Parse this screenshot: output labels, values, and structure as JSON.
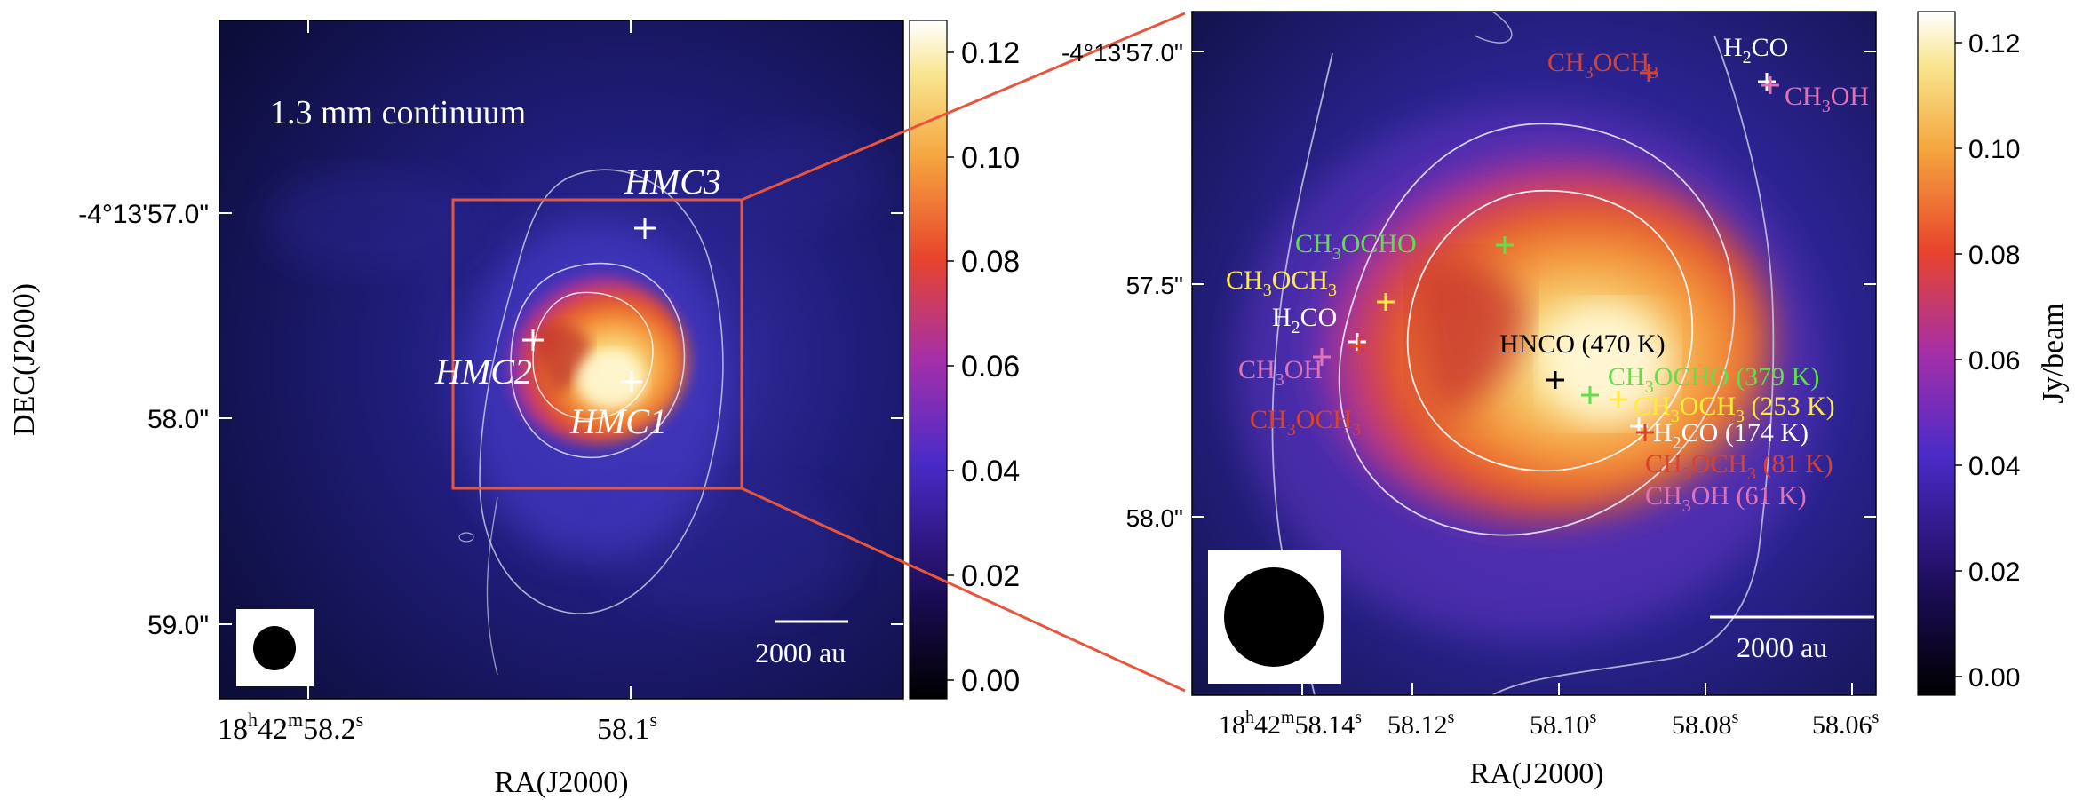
{
  "left_panel": {
    "title": "1.3 mm continuum",
    "ylabel": "DEC(J2000)",
    "xlabel": "RA(J2000)",
    "yticks": [
      "-4°13'57.0\"",
      "58.0\"",
      "59.0\""
    ],
    "xticks": [
      {
        "h": "18",
        "m": "42",
        "s": "58.2"
      },
      {
        "s": "58.1"
      }
    ],
    "colorbar": {
      "ticks": [
        "0.12",
        "0.10",
        "0.08",
        "0.06",
        "0.04",
        "0.02",
        "0.00"
      ]
    },
    "sources": [
      {
        "label": "HMC3",
        "pos": "north"
      },
      {
        "label": "HMC2",
        "pos": "west"
      },
      {
        "label": "HMC1",
        "pos": "south-east"
      }
    ],
    "scale_bar": "2000 au"
  },
  "right_panel": {
    "xlabel": "RA(J2000)",
    "yticks": [
      "-4°13'57.0\"",
      "57.5\"",
      "58.0\""
    ],
    "xticks": [
      {
        "h": "18",
        "m": "42",
        "s": "58.14"
      },
      {
        "s": "58.12"
      },
      {
        "s": "58.10"
      },
      {
        "s": "58.08"
      },
      {
        "s": "58.06"
      }
    ],
    "colorbar": {
      "label": "Jy/beam",
      "ticks": [
        "0.12",
        "0.10",
        "0.08",
        "0.06",
        "0.04",
        "0.02",
        "0.00"
      ]
    },
    "scale_bar": "2000 au",
    "peaks": {
      "hmc3": [
        {
          "pre": "CH",
          "sub": "3",
          "post": "OCH",
          "sub2": "3",
          "color": "#d9432b"
        },
        {
          "pre": "H",
          "sub": "2",
          "post": "CO",
          "color": "#ffffff"
        },
        {
          "pre": "CH",
          "sub": "3",
          "post": "OH",
          "color": "#e073b5"
        }
      ],
      "hmc2": [
        {
          "pre": "CH",
          "sub": "3",
          "post": "OCHO",
          "color": "#5fe04a"
        },
        {
          "pre": "CH",
          "sub": "3",
          "post": "OCH",
          "sub2": "3",
          "color": "#ffeb3b"
        },
        {
          "pre": "H",
          "sub": "2",
          "post": "CO",
          "color": "#ffffff"
        },
        {
          "pre": "CH",
          "sub": "3",
          "post": "OH",
          "color": "#e073b5"
        },
        {
          "pre": "CH",
          "sub": "3",
          "post": "OCH",
          "sub2": "3",
          "color": "#d9432b"
        }
      ],
      "hmc1": [
        {
          "text": "HNCO (470 K)",
          "color": "#000000"
        },
        {
          "pre": "CH",
          "sub": "3",
          "post": "OCHO (379 K)",
          "color": "#5fe04a"
        },
        {
          "pre": "CH",
          "sub": "3",
          "post": "OCH",
          "sub2": "3",
          "post2": " (253 K)",
          "color": "#ffeb3b"
        },
        {
          "pre": "H",
          "sub": "2",
          "post": "CO (174 K)",
          "color": "#ffffff"
        },
        {
          "pre": "CH",
          "sub": "3",
          "post": "OCH",
          "sub2": "3",
          "post2": " (81 K)",
          "color": "#d9432b"
        },
        {
          "pre": "CH",
          "sub": "3",
          "post": "OH (61 K)",
          "color": "#e073b5"
        }
      ]
    }
  }
}
